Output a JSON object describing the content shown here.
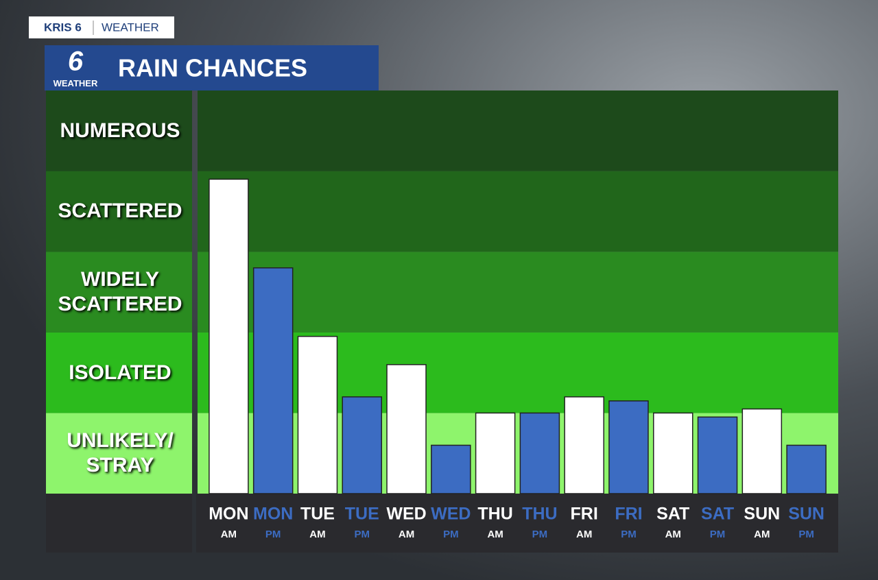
{
  "brand": "KRIS 6",
  "section": "WEATHER",
  "logo_number": "6",
  "logo_label": "WEATHER",
  "chart_data": {
    "type": "bar",
    "title": "RAIN CHANCES",
    "categories": [
      "MON",
      "MON",
      "TUE",
      "TUE",
      "WED",
      "WED",
      "THU",
      "THU",
      "FRI",
      "FRI",
      "SAT",
      "SAT",
      "SUN",
      "SUN"
    ],
    "sublabels": [
      "AM",
      "PM",
      "AM",
      "PM",
      "AM",
      "PM",
      "AM",
      "PM",
      "AM",
      "PM",
      "AM",
      "PM",
      "AM",
      "PM"
    ],
    "values": [
      3.9,
      2.8,
      1.95,
      1.2,
      1.6,
      0.6,
      1.0,
      1.0,
      1.2,
      1.15,
      1.0,
      0.95,
      1.05,
      0.6
    ],
    "colors": [
      "#ffffff",
      "#3c6cc2",
      "#ffffff",
      "#3c6cc2",
      "#ffffff",
      "#3c6cc2",
      "#ffffff",
      "#3c6cc2",
      "#ffffff",
      "#3c6cc2",
      "#ffffff",
      "#3c6cc2",
      "#ffffff",
      "#3c6cc2"
    ],
    "ylim": [
      0,
      5
    ],
    "yticks": [
      {
        "value": 0.5,
        "label": "UNLIKELY/ STRAY"
      },
      {
        "value": 1.5,
        "label": "ISOLATED"
      },
      {
        "value": 2.5,
        "label": "WIDELY SCATTERED"
      },
      {
        "value": 3.5,
        "label": "SCATTERED"
      },
      {
        "value": 4.5,
        "label": "NUMEROUS"
      }
    ],
    "band_colors": [
      "#8ef46c",
      "#2cbb1d",
      "#2a8b20",
      "#21661b",
      "#1d4a1b"
    ]
  }
}
